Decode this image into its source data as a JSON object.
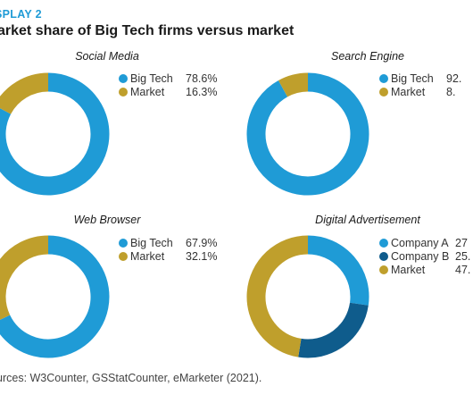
{
  "exhibit_label": "SPLAY 2",
  "title": "arket share of Big Tech firms versus market",
  "source": "urces: W3Counter, GSStatCounter, eMarketer (2021).",
  "colors": {
    "big_tech": "#1f9bd6",
    "market": "#bf9f2c",
    "company_b": "#0f5c8c"
  },
  "chart_data": [
    {
      "type": "pie",
      "title": "Social Media",
      "labels": [
        "Big Tech",
        "Market"
      ],
      "values": [
        78.6,
        16.3
      ],
      "value_labels": [
        "78.6%",
        "16.3%"
      ],
      "colors": [
        "#1f9bd6",
        "#bf9f2c"
      ]
    },
    {
      "type": "pie",
      "title": "Search Engine",
      "labels": [
        "Big Tech",
        "Market"
      ],
      "values": [
        92.0,
        8.0
      ],
      "value_labels": [
        "92.",
        "8."
      ],
      "colors": [
        "#1f9bd6",
        "#bf9f2c"
      ]
    },
    {
      "type": "pie",
      "title": "Web Browser",
      "labels": [
        "Big Tech",
        "Market"
      ],
      "values": [
        67.9,
        32.1
      ],
      "value_labels": [
        "67.9%",
        "32.1%"
      ],
      "colors": [
        "#1f9bd6",
        "#bf9f2c"
      ]
    },
    {
      "type": "pie",
      "title": "Digital Advertisement",
      "labels": [
        "Company A",
        "Company B",
        "Market"
      ],
      "values": [
        27.0,
        25.0,
        47.0
      ],
      "value_labels": [
        "27",
        "25.",
        "47."
      ],
      "colors": [
        "#1f9bd6",
        "#0f5c8c",
        "#bf9f2c"
      ]
    }
  ]
}
